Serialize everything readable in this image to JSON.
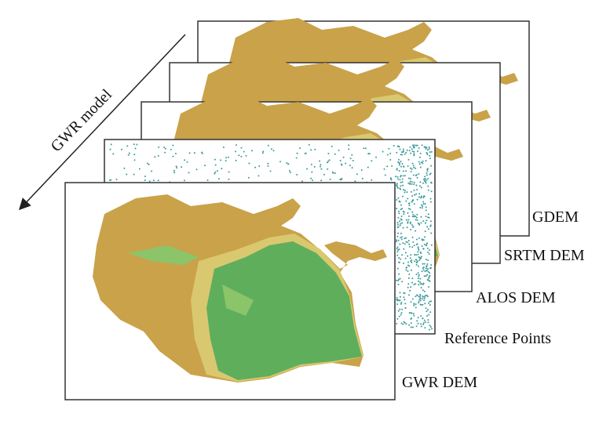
{
  "arrow_label": "GWR model",
  "layers": [
    {
      "label": "GDEM"
    },
    {
      "label": "SRTM DEM"
    },
    {
      "label": "ALOS DEM"
    },
    {
      "label": "Reference Points"
    },
    {
      "label": "GWR DEM"
    }
  ]
}
